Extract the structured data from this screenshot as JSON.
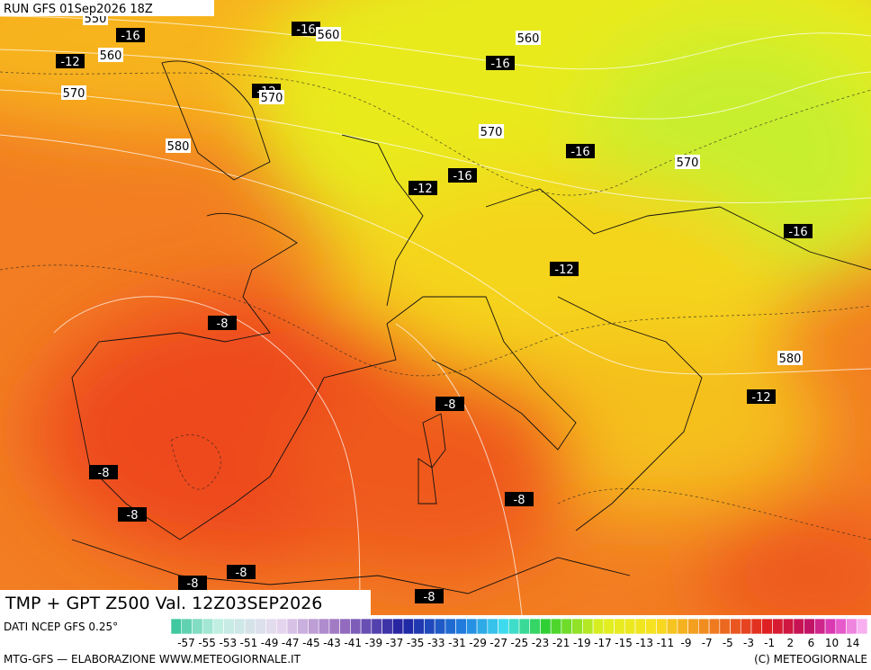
{
  "header": {
    "run": "RUN GFS 01Sep2026 18Z"
  },
  "map": {
    "temperature_labels": [
      -16,
      -16,
      -12,
      -16,
      -12,
      -16,
      -16,
      -12,
      -16,
      -12,
      -8,
      -8,
      -12,
      -8,
      -8,
      -8,
      -8,
      -8,
      -8
    ],
    "height_labels": [
      550,
      560,
      560,
      560,
      570,
      570,
      580,
      570,
      570,
      580
    ]
  },
  "title": "TMP + GPT Z500 Val. 12Z03SEP2026",
  "colorbar": {
    "source": "DATI NCEP GFS 0.25°",
    "labels": [
      -57,
      -55,
      -53,
      -51,
      -49,
      -47,
      -45,
      -43,
      -41,
      -39,
      -37,
      -35,
      -33,
      -31,
      -29,
      -27,
      -25,
      -23,
      -21,
      -19,
      -17,
      -15,
      -13,
      -11,
      -9,
      -7,
      -5,
      -3,
      -1,
      2,
      6,
      10,
      14
    ]
  },
  "footer": {
    "left": "MTG-GFS — ELABORAZIONE WWW.METEOGIORNALE.IT",
    "right": "(C) METEOGIORNALE"
  }
}
